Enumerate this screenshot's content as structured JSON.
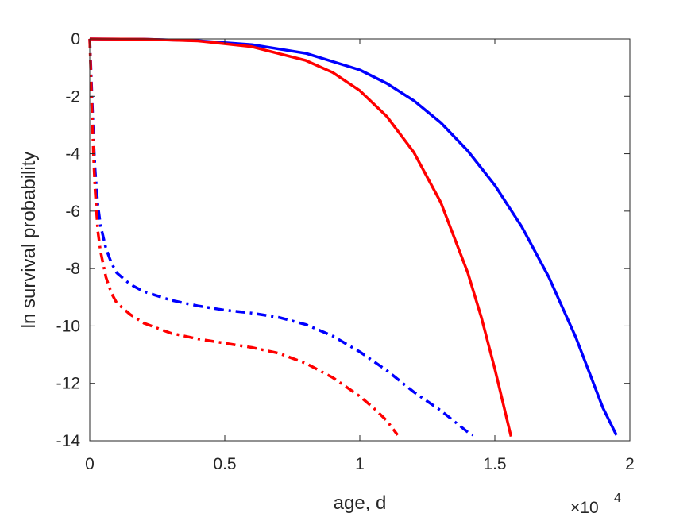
{
  "chart_data": {
    "type": "line",
    "title": "",
    "xlabel": "age, d",
    "ylabel": "ln survival probability",
    "x_exponent_label": "×10",
    "x_exponent_power": "4",
    "xlim": [
      0,
      20000
    ],
    "ylim": [
      -14,
      0
    ],
    "x_ticks": [
      0,
      5000,
      10000,
      15000,
      20000
    ],
    "x_tick_labels": [
      "0",
      "0.5",
      "1",
      "1.5",
      "2"
    ],
    "y_ticks": [
      0,
      -2,
      -4,
      -6,
      -8,
      -10,
      -12,
      -14
    ],
    "y_tick_labels": [
      "0",
      "-2",
      "-4",
      "-6",
      "-8",
      "-10",
      "-12",
      "-14"
    ],
    "grid": false,
    "series": [
      {
        "color": "#0000ff",
        "style": "solid",
        "x": [
          0,
          2000,
          4000,
          6000,
          8000,
          10000,
          11000,
          12000,
          13000,
          14000,
          15000,
          16000,
          17000,
          18000,
          19000,
          19500
        ],
        "y": [
          0,
          -0.01,
          -0.06,
          -0.2,
          -0.5,
          -1.08,
          -1.55,
          -2.15,
          -2.92,
          -3.9,
          -5.1,
          -6.55,
          -8.3,
          -10.4,
          -12.85,
          -13.8
        ]
      },
      {
        "color": "#ff0000",
        "style": "solid",
        "x": [
          0,
          2000,
          4000,
          6000,
          8000,
          9000,
          10000,
          11000,
          12000,
          13000,
          14000,
          14500,
          15000,
          15600
        ],
        "y": [
          0,
          -0.01,
          -0.07,
          -0.27,
          -0.75,
          -1.17,
          -1.8,
          -2.7,
          -3.95,
          -5.7,
          -8.15,
          -9.7,
          -11.5,
          -13.85
        ]
      },
      {
        "color": "#0000ff",
        "style": "dashdot",
        "x": [
          0,
          50,
          100,
          150,
          200,
          300,
          400,
          600,
          800,
          1000,
          1500,
          2000,
          3000,
          4000,
          5000,
          6000,
          7000,
          8000,
          9000,
          10000,
          11000,
          12000,
          13000,
          14000,
          14200
        ],
        "y": [
          0,
          -1.2,
          -2.5,
          -3.7,
          -4.6,
          -5.8,
          -6.5,
          -7.3,
          -7.8,
          -8.15,
          -8.55,
          -8.8,
          -9.1,
          -9.3,
          -9.45,
          -9.55,
          -9.7,
          -9.95,
          -10.35,
          -10.9,
          -11.55,
          -12.3,
          -12.95,
          -13.7,
          -13.8
        ]
      },
      {
        "color": "#ff0000",
        "style": "dashdot",
        "x": [
          0,
          50,
          100,
          150,
          200,
          300,
          400,
          600,
          800,
          1000,
          1500,
          2000,
          3000,
          4000,
          5000,
          6000,
          7000,
          8000,
          9000,
          10000,
          10500,
          11000,
          11400
        ],
        "y": [
          0,
          -1.5,
          -3.0,
          -4.3,
          -5.3,
          -6.7,
          -7.4,
          -8.3,
          -8.85,
          -9.2,
          -9.6,
          -9.9,
          -10.25,
          -10.45,
          -10.6,
          -10.75,
          -10.95,
          -11.3,
          -11.8,
          -12.45,
          -12.85,
          -13.3,
          -13.8
        ]
      }
    ]
  }
}
